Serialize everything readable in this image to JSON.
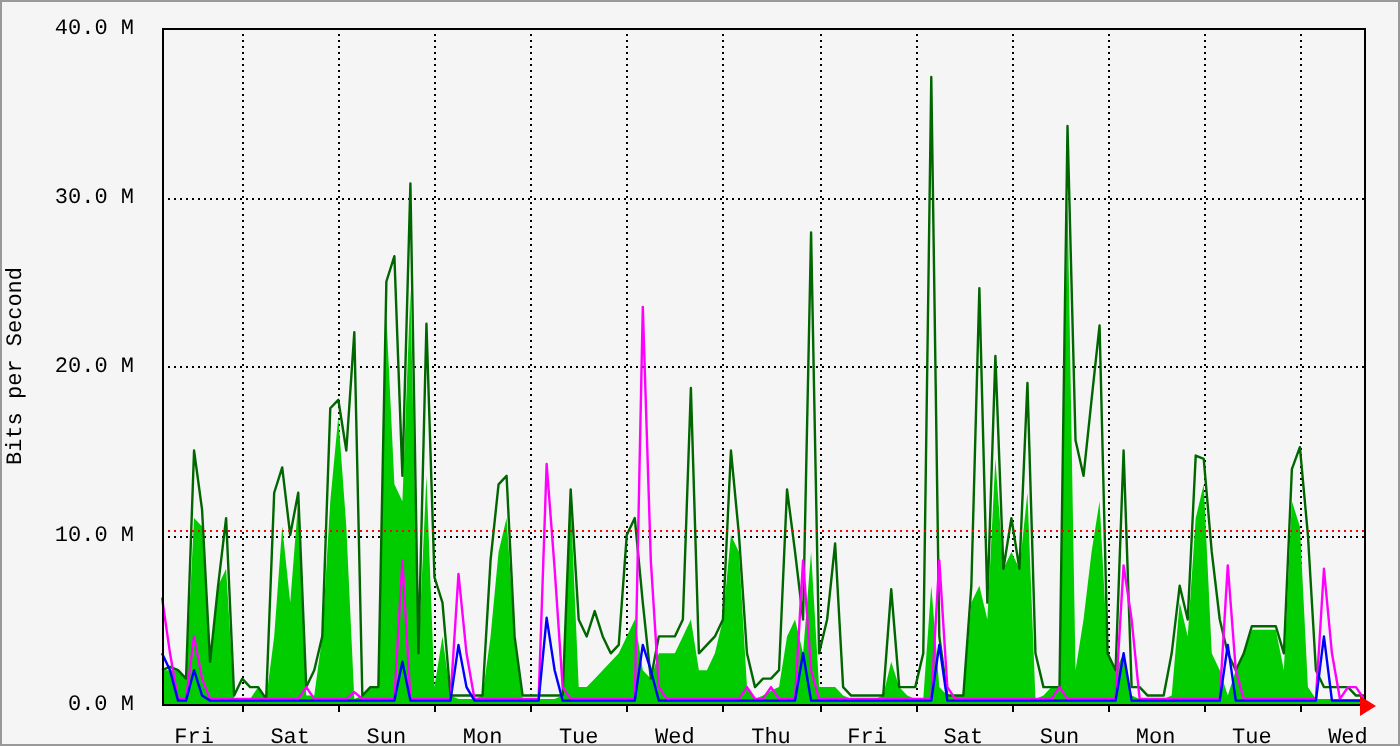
{
  "chart_data": {
    "type": "line",
    "ylabel": "Bits per Second",
    "categories": [
      null,
      null,
      null,
      null,
      "Fri",
      null,
      null,
      null,
      null,
      null,
      null,
      null,
      null,
      null,
      null,
      null,
      "Sat",
      null,
      null,
      null,
      null,
      null,
      null,
      null,
      null,
      null,
      null,
      null,
      "Sun",
      null,
      null,
      null,
      null,
      null,
      null,
      null,
      null,
      null,
      null,
      null,
      "Mon",
      null,
      null,
      null,
      null,
      null,
      null,
      null,
      null,
      null,
      null,
      null,
      "Tue",
      null,
      null,
      null,
      null,
      null,
      null,
      null,
      null,
      null,
      null,
      null,
      "Wed",
      null,
      null,
      null,
      null,
      null,
      null,
      null,
      null,
      null,
      null,
      null,
      "Thu",
      null,
      null,
      null,
      null,
      null,
      null,
      null,
      null,
      null,
      null,
      null,
      "Fri",
      null,
      null,
      null,
      null,
      null,
      null,
      null,
      null,
      null,
      null,
      null,
      "Sat",
      null,
      null,
      null,
      null,
      null,
      null,
      null,
      null,
      null,
      null,
      null,
      "Sun",
      null,
      null,
      null,
      null,
      null,
      null,
      null,
      null,
      null,
      null,
      null,
      "Mon",
      null,
      null,
      null,
      null,
      null,
      null,
      null,
      null,
      null,
      null,
      null,
      "Tue",
      null,
      null,
      null,
      null,
      null,
      null,
      null,
      null,
      null,
      null,
      null,
      "Wed",
      null,
      null
    ],
    "ylim": [
      0,
      40
    ],
    "yticks": [
      {
        "value": 0,
        "label": "0.0 M"
      },
      {
        "value": 10,
        "label": "10.0 M"
      },
      {
        "value": 20,
        "label": "20.0 M"
      },
      {
        "value": 30,
        "label": "30.0 M"
      },
      {
        "value": 40,
        "label": "40.0 M"
      }
    ],
    "grid": true,
    "legend": false,
    "marker": "none",
    "line_style": "solid",
    "ref_lines": [
      {
        "axis": "y",
        "value": 10.3,
        "color": "#ff0000",
        "line_style": "dotted"
      }
    ],
    "series": [
      {
        "type": "area",
        "color": "#00cc00",
        "values": [
          2,
          2,
          2,
          1.5,
          11,
          10.5,
          2.5,
          7,
          8,
          0.3,
          0.3,
          0.3,
          1,
          0.3,
          4,
          10.5,
          6,
          12,
          0.5,
          0.5,
          4,
          12,
          17,
          10.5,
          0.3,
          0.5,
          1,
          1,
          23,
          13,
          12,
          24.5,
          3,
          13.5,
          1,
          4,
          0.5,
          0.3,
          0.3,
          0.3,
          0.5,
          4,
          9,
          11,
          4,
          0.3,
          0.3,
          0.3,
          0.3,
          0.3,
          0.5,
          12,
          1,
          1,
          1.5,
          2,
          2.5,
          3,
          4,
          5,
          2,
          1.5,
          3,
          3,
          3,
          4,
          5,
          2,
          2,
          3,
          5,
          10,
          9,
          1,
          0.3,
          0.5,
          0.8,
          1,
          4,
          5,
          3,
          9,
          1,
          1,
          1,
          0.5,
          0.3,
          0.3,
          0.3,
          0.3,
          0.5,
          2.5,
          1,
          0.5,
          0.3,
          0.3,
          7,
          1,
          0.5,
          0.5,
          0.5,
          6,
          7,
          5,
          14.5,
          8,
          9,
          8,
          12.5,
          0.3,
          0.5,
          1,
          1,
          30,
          2,
          5,
          9,
          12,
          3,
          2,
          3,
          0.5,
          0.3,
          0.3,
          0.3,
          0.3,
          0.5,
          6,
          4,
          11,
          13,
          3,
          2,
          0.5,
          2,
          3,
          4.4,
          4.4,
          4.4,
          4.4,
          2,
          12,
          10.5,
          1,
          0.3,
          0.3,
          0.3,
          0.3,
          0.3,
          0.3,
          0.3
        ]
      },
      {
        "type": "line",
        "color": "#006600",
        "values": [
          2,
          2.2,
          2,
          1.5,
          15,
          11.5,
          2.5,
          7,
          11,
          0.5,
          1.5,
          1,
          1,
          0.3,
          12.5,
          14,
          10,
          12.5,
          1,
          2,
          4,
          17.5,
          18,
          15,
          22,
          0.5,
          1,
          1,
          25,
          26.5,
          13.5,
          30.8,
          3,
          22.5,
          7.5,
          6,
          0.5,
          0.5,
          0.5,
          0.5,
          0.5,
          8.5,
          13,
          13.5,
          4,
          0.5,
          0.5,
          0.5,
          0.5,
          0.5,
          0.5,
          12.7,
          5,
          4,
          5.5,
          4,
          3,
          3.5,
          10,
          11,
          6,
          1.5,
          4,
          4,
          4,
          5,
          18.7,
          3,
          3.5,
          4,
          5,
          15,
          10,
          3,
          1,
          1.5,
          1.5,
          2,
          12.7,
          9,
          5,
          27.9,
          3,
          5,
          9.5,
          1,
          0.5,
          0.5,
          0.5,
          0.5,
          0.5,
          6.8,
          1,
          1,
          1,
          3,
          37.1,
          4,
          0.5,
          0.5,
          0.5,
          7,
          24.6,
          6,
          20.6,
          8,
          11,
          8,
          19,
          3,
          1,
          1,
          1,
          34.2,
          15.6,
          13.5,
          18,
          22.4,
          3,
          2,
          15,
          1,
          1,
          0.5,
          0.5,
          0.5,
          3,
          7,
          5,
          14.7,
          14.5,
          9,
          5,
          3,
          2,
          3,
          4.6,
          4.6,
          4.6,
          4.6,
          3,
          13.9,
          15.2,
          10,
          2,
          1,
          1,
          1,
          1,
          0.5,
          0.5
        ]
      },
      {
        "type": "line",
        "color": "#ff00ff",
        "values": [
          6.3,
          3,
          0.3,
          0.3,
          4,
          1.5,
          0.3,
          0.3,
          0.3,
          0.3,
          0.3,
          0.3,
          0.3,
          0.3,
          0.3,
          0.3,
          0.3,
          0.3,
          1,
          0.3,
          0.3,
          0.3,
          0.3,
          0.3,
          0.7,
          0.3,
          0.3,
          0.3,
          0.3,
          0.3,
          8.5,
          0.3,
          0.3,
          0.3,
          0.3,
          0.3,
          0.3,
          7.7,
          3,
          0.3,
          0.3,
          0.3,
          0.3,
          0.3,
          0.3,
          0.3,
          0.3,
          0.3,
          14.2,
          8,
          1,
          0.3,
          0.3,
          0.3,
          0.3,
          0.3,
          0.3,
          0.3,
          0.3,
          0.3,
          23.5,
          8.5,
          1,
          0.3,
          0.3,
          0.3,
          0.3,
          0.3,
          0.3,
          0.3,
          0.3,
          0.3,
          0.3,
          1,
          0.3,
          0.3,
          1,
          0.3,
          0.3,
          0.3,
          8.5,
          2,
          0.3,
          0.3,
          0.3,
          0.3,
          0.3,
          0.3,
          0.3,
          0.3,
          0.3,
          0.3,
          0.3,
          0.3,
          0.3,
          0.3,
          0.3,
          8.5,
          1,
          0.3,
          0.3,
          0.3,
          0.3,
          0.3,
          0.3,
          0.3,
          0.3,
          0.3,
          0.3,
          0.3,
          0.3,
          0.3,
          1,
          0.3,
          0.3,
          0.3,
          0.3,
          0.3,
          0.3,
          0.3,
          8.2,
          5,
          0.3,
          0.3,
          0.3,
          0.3,
          0.3,
          0.3,
          0.3,
          0.3,
          0.3,
          0.3,
          0.3,
          8.2,
          2,
          0.3,
          0.3,
          0.3,
          0.3,
          0.3,
          0.3,
          0.3,
          0.3,
          0.3,
          0.3,
          8,
          3,
          0.3,
          1,
          1,
          0.3
        ]
      },
      {
        "type": "line",
        "color": "#0000ff",
        "values": [
          3,
          2,
          0.2,
          0.2,
          2,
          0.5,
          0.2,
          0.2,
          0.2,
          0.2,
          0.2,
          0.2,
          0.2,
          0.2,
          0.2,
          0.2,
          0.2,
          0.2,
          0.2,
          0.2,
          0.2,
          0.2,
          0.2,
          0.2,
          0.2,
          0.2,
          0.2,
          0.2,
          0.2,
          0.2,
          2.5,
          0.2,
          0.2,
          0.2,
          0.2,
          0.2,
          0.2,
          3.5,
          1,
          0.2,
          0.2,
          0.2,
          0.2,
          0.2,
          0.2,
          0.2,
          0.2,
          0.2,
          5.1,
          2,
          0.2,
          0.2,
          0.2,
          0.2,
          0.2,
          0.2,
          0.2,
          0.2,
          0.2,
          0.2,
          3.5,
          2,
          0.2,
          0.2,
          0.2,
          0.2,
          0.2,
          0.2,
          0.2,
          0.2,
          0.2,
          0.2,
          0.2,
          0.2,
          0.2,
          0.2,
          0.2,
          0.2,
          0.2,
          0.2,
          3,
          0.2,
          0.2,
          0.2,
          0.2,
          0.2,
          0.2,
          0.2,
          0.2,
          0.2,
          0.2,
          0.2,
          0.2,
          0.2,
          0.2,
          0.2,
          0.2,
          3.5,
          0.2,
          0.2,
          0.2,
          0.2,
          0.2,
          0.2,
          0.2,
          0.2,
          0.2,
          0.2,
          0.2,
          0.2,
          0.2,
          0.2,
          0.2,
          0.2,
          0.2,
          0.2,
          0.2,
          0.2,
          0.2,
          0.2,
          3,
          0.2,
          0.2,
          0.2,
          0.2,
          0.2,
          0.2,
          0.2,
          0.2,
          0.2,
          0.2,
          0.2,
          0.2,
          3.5,
          0.2,
          0.2,
          0.2,
          0.2,
          0.2,
          0.2,
          0.2,
          0.2,
          0.2,
          0.2,
          0.2,
          4,
          0.2,
          0.2,
          0.2,
          0.2,
          0.2
        ]
      }
    ]
  }
}
